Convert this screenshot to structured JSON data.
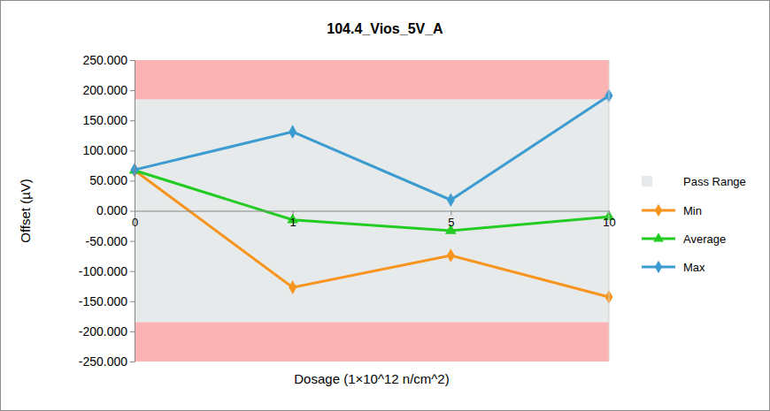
{
  "chart_data": {
    "type": "line",
    "title": "104.4_Vios_5V_A",
    "x_label": "Dosage (1×10^12 n/cm^2)",
    "y_label": "Offset (µV)",
    "categories": [
      "0",
      "1",
      "5",
      "10"
    ],
    "series": [
      {
        "name": "Min",
        "color": "#f7941d",
        "marker": "diamond",
        "values": [
          67,
          -127,
          -74,
          -143
        ]
      },
      {
        "name": "Average",
        "color": "#22cc22",
        "marker": "triangle",
        "values": [
          67,
          -15,
          -33,
          -10
        ]
      },
      {
        "name": "Max",
        "color": "#3c9bd0",
        "marker": "diamond",
        "values": [
          68,
          131,
          18,
          191
        ]
      }
    ],
    "pass_range": {
      "name": "Pass Range",
      "low": -185,
      "high": 185,
      "color": "#e7eaea"
    },
    "ylim": [
      -250,
      250
    ],
    "yticks": [
      {
        "value": -250,
        "label": "-250.000"
      },
      {
        "value": -200,
        "label": "-200.000"
      },
      {
        "value": -150,
        "label": "-150.000"
      },
      {
        "value": -100,
        "label": "-100.000"
      },
      {
        "value": -50,
        "label": "-50.000"
      },
      {
        "value": 0,
        "label": "0.000"
      },
      {
        "value": 50,
        "label": "50.000"
      },
      {
        "value": 100,
        "label": "100.000"
      },
      {
        "value": 150,
        "label": "150.000"
      },
      {
        "value": 200,
        "label": "200.000"
      },
      {
        "value": 250,
        "label": "250.000"
      }
    ],
    "grid": false,
    "legend": "right"
  }
}
